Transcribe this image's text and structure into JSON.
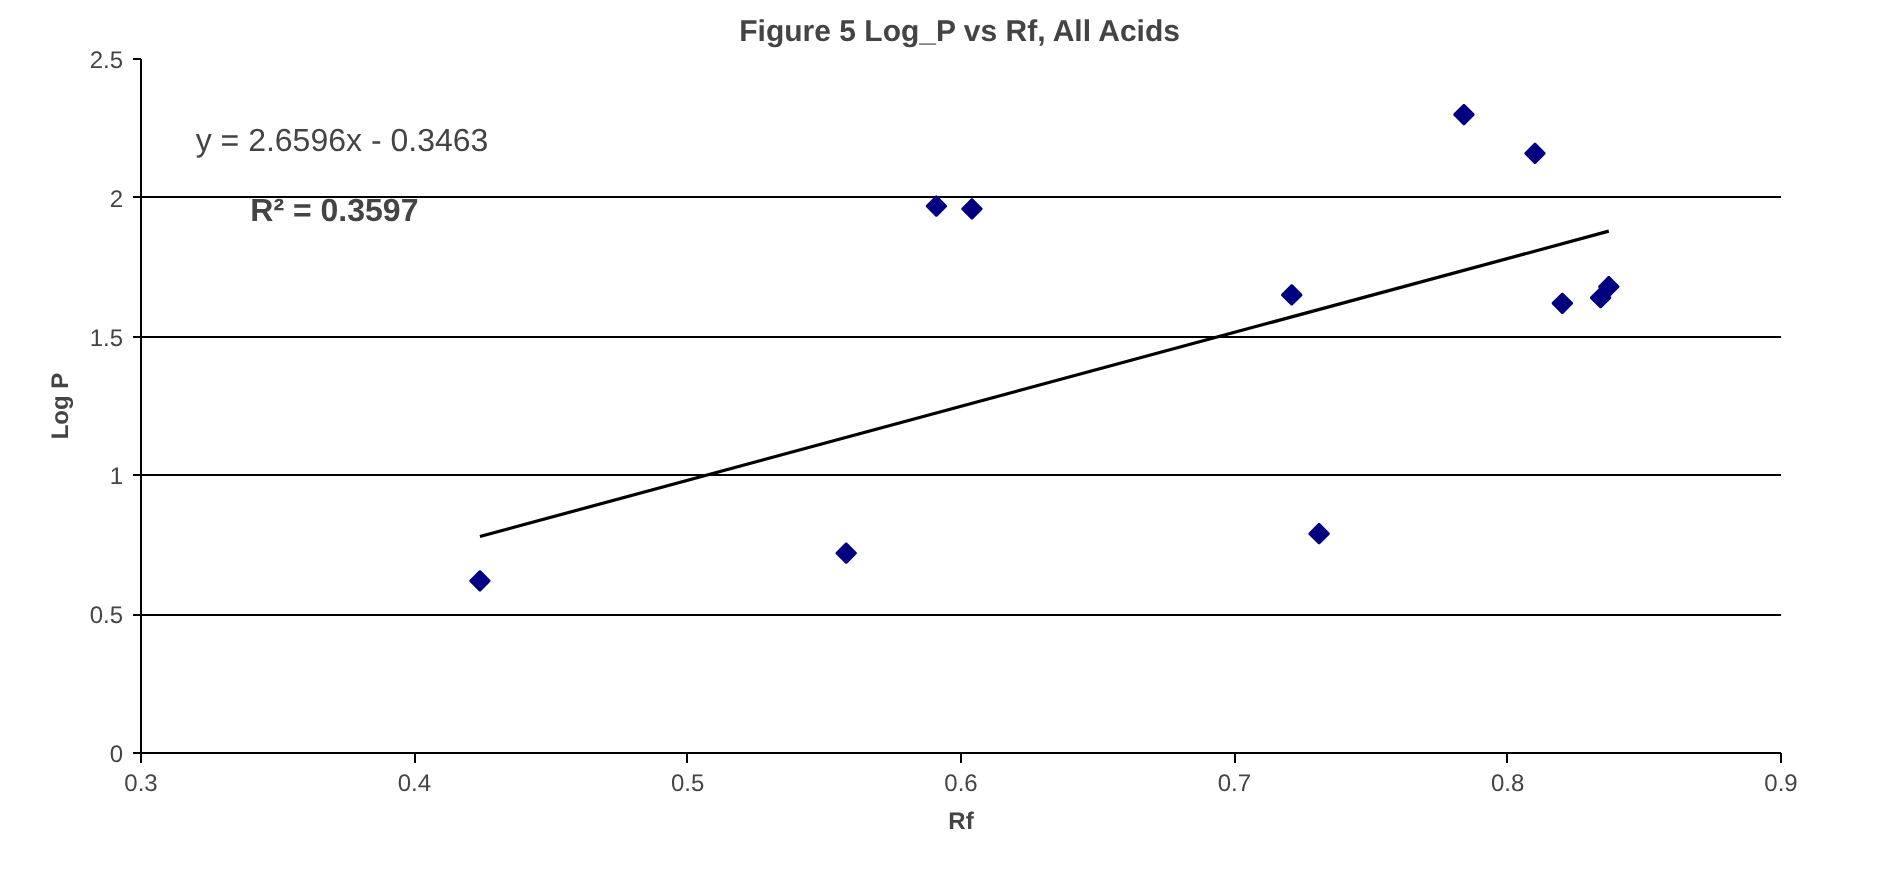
{
  "chart_data": {
    "type": "scatter",
    "title": "Figure 5 Log_P vs Rf, All Acids",
    "xlabel": "Rf",
    "ylabel": "Log P",
    "annotations": [
      "y = 2.6596x - 0.3463",
      "R² = 0.3597"
    ],
    "series": [
      {
        "color": "#000080",
        "marker": "diamond",
        "x": [
          0.424,
          0.558,
          0.591,
          0.604,
          0.721,
          0.731,
          0.784,
          0.81,
          0.82,
          0.834,
          0.837
        ],
        "values": [
          0.62,
          0.72,
          1.97,
          1.96,
          1.65,
          0.79,
          2.3,
          2.16,
          1.62,
          1.64,
          1.68
        ]
      },
      {
        "type": "line",
        "color": "#000000",
        "line_style": "solid",
        "x": [
          0.424,
          0.837
        ],
        "values": [
          0.78,
          1.88
        ]
      }
    ],
    "xlim": [
      0.3,
      0.9
    ],
    "xticks": [
      0.3,
      0.4,
      0.5,
      0.6,
      0.7,
      0.8,
      0.9
    ],
    "ylim": [
      0,
      2.5
    ],
    "yticks": [
      0,
      0.5,
      1,
      1.5,
      2,
      2.5
    ],
    "grid": "y"
  }
}
